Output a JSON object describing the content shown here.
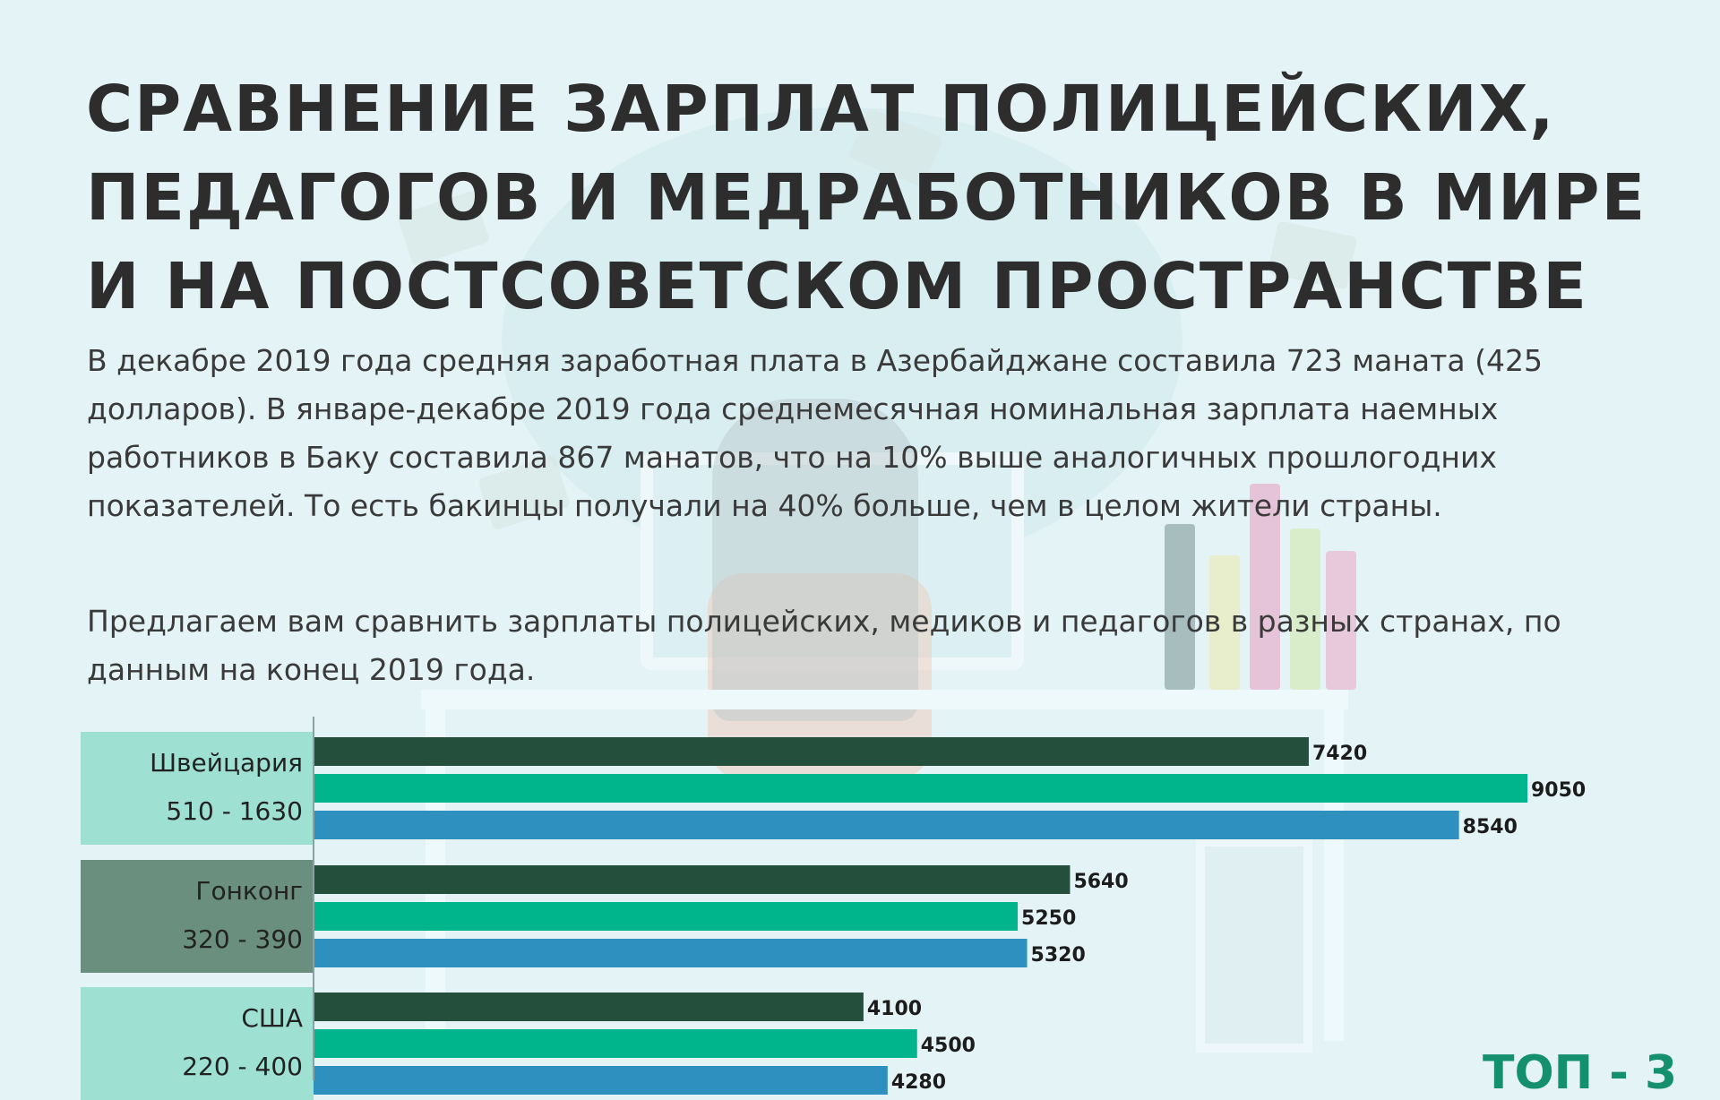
{
  "title": "Сравнение зарплат полицейских, педагогов и медработников в мире и на постсоветском пространстве",
  "paragraphs": [
    "В декабре 2019 года средняя заработная плата в Азербайджане составила 723 маната (425 долларов). В январе-декабре 2019 года среднемесячная номинальная зарплата наемных работников в Баку составила 867 манатов, что на 10% выше аналогичных прошлогодних показателей. То есть бакинцы получали на 40% больше, чем в целом жители страны.",
    "Предлагаем вам сравнить зарплаты полицейских, медиков и педагогов в разных странах, по данным на конец 2019 года."
  ],
  "badge": "ТОП - 3",
  "colors": {
    "background": "#e4f3f6",
    "series": [
      "#234f3c",
      "#00b58c",
      "#2e90bf"
    ],
    "label_box_light": "#9ee0d1",
    "label_box_dark": "#6b8f7f",
    "axis": "#8aa0a4"
  },
  "chart_data": {
    "type": "bar",
    "orientation": "horizontal",
    "categories": [
      "Швейцария",
      "Гонконг",
      "США"
    ],
    "category_ranges": [
      "510 - 1630",
      "320 - 390",
      "220 - 400"
    ],
    "series": [
      {
        "values": [
          7420,
          5640,
          4100
        ]
      },
      {
        "values": [
          9050,
          5250,
          4500
        ]
      },
      {
        "values": [
          8540,
          5320,
          4280
        ]
      }
    ],
    "xlim": [
      0,
      9050
    ],
    "grid": false,
    "legend": "none"
  }
}
